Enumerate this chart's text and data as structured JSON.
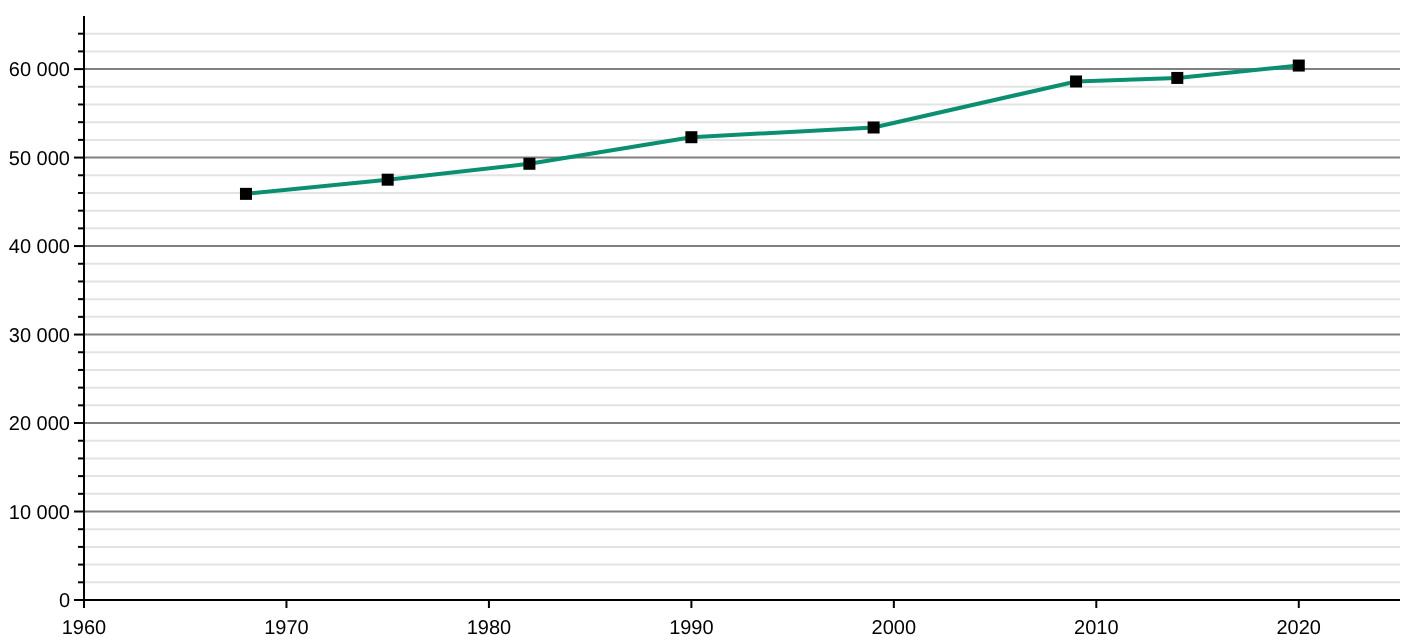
{
  "chart_data": {
    "type": "line",
    "x": [
      1968,
      1975,
      1982,
      1990,
      1999,
      2009,
      2014,
      2020
    ],
    "series": [
      {
        "color": "#0a9070",
        "values": [
          45900,
          47500,
          49300,
          52300,
          53400,
          58600,
          59000,
          60400
        ]
      }
    ],
    "marker": "square",
    "line_style": "solid",
    "grid": "y",
    "xlim": [
      1960,
      2025
    ],
    "xticks": [
      1960,
      1970,
      1980,
      1990,
      2000,
      2010,
      2020
    ],
    "ylim": [
      0,
      66000
    ],
    "yticks": [
      {
        "value": 0,
        "label": "0"
      },
      {
        "value": 2000,
        "label": null
      },
      {
        "value": 4000,
        "label": null
      },
      {
        "value": 6000,
        "label": null
      },
      {
        "value": 8000,
        "label": null
      },
      {
        "value": 10000,
        "label": "10 000"
      },
      {
        "value": 12000,
        "label": null
      },
      {
        "value": 14000,
        "label": null
      },
      {
        "value": 16000,
        "label": null
      },
      {
        "value": 18000,
        "label": null
      },
      {
        "value": 20000,
        "label": "20 000"
      },
      {
        "value": 22000,
        "label": null
      },
      {
        "value": 24000,
        "label": null
      },
      {
        "value": 26000,
        "label": null
      },
      {
        "value": 28000,
        "label": null
      },
      {
        "value": 30000,
        "label": "30 000"
      },
      {
        "value": 32000,
        "label": null
      },
      {
        "value": 34000,
        "label": null
      },
      {
        "value": 36000,
        "label": null
      },
      {
        "value": 38000,
        "label": null
      },
      {
        "value": 40000,
        "label": "40 000"
      },
      {
        "value": 42000,
        "label": null
      },
      {
        "value": 44000,
        "label": null
      },
      {
        "value": 46000,
        "label": null
      },
      {
        "value": 48000,
        "label": null
      },
      {
        "value": 50000,
        "label": "50 000"
      },
      {
        "value": 52000,
        "label": null
      },
      {
        "value": 54000,
        "label": null
      },
      {
        "value": 56000,
        "label": null
      },
      {
        "value": 58000,
        "label": null
      },
      {
        "value": 60000,
        "label": "60 000"
      },
      {
        "value": 62000,
        "label": null
      },
      {
        "value": 64000,
        "label": null
      }
    ]
  }
}
